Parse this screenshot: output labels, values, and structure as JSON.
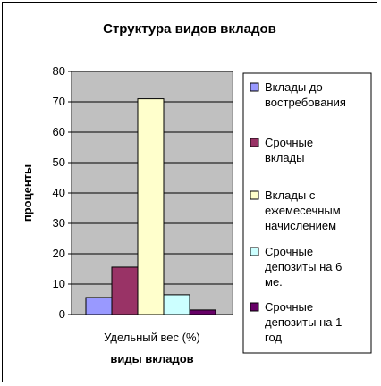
{
  "chart_data": {
    "type": "bar",
    "title": "Структура видов вкладов",
    "xlabel": "виды вкладов",
    "ylabel": "проценты",
    "categories": [
      "Удельный вес (%)"
    ],
    "ylim": [
      0,
      80
    ],
    "yticks": [
      0,
      10,
      20,
      30,
      40,
      50,
      60,
      70,
      80
    ],
    "grid": true,
    "plot_background": "#c0c0c0",
    "legend_position": "right",
    "series": [
      {
        "name": "Вклады до востребования",
        "values": [
          5.6
        ],
        "color": "#9999ff"
      },
      {
        "name": "Срочные вклады",
        "values": [
          15.6
        ],
        "color": "#993366"
      },
      {
        "name": "Вклады с ежемесечным начислением",
        "values": [
          71
        ],
        "color": "#ffffcc"
      },
      {
        "name": "Срочные депозиты на 6 ме.",
        "values": [
          6.5
        ],
        "color": "#ccffff"
      },
      {
        "name": "Срочные депозиты на 1 год",
        "values": [
          1.5
        ],
        "color": "#660066"
      }
    ]
  }
}
